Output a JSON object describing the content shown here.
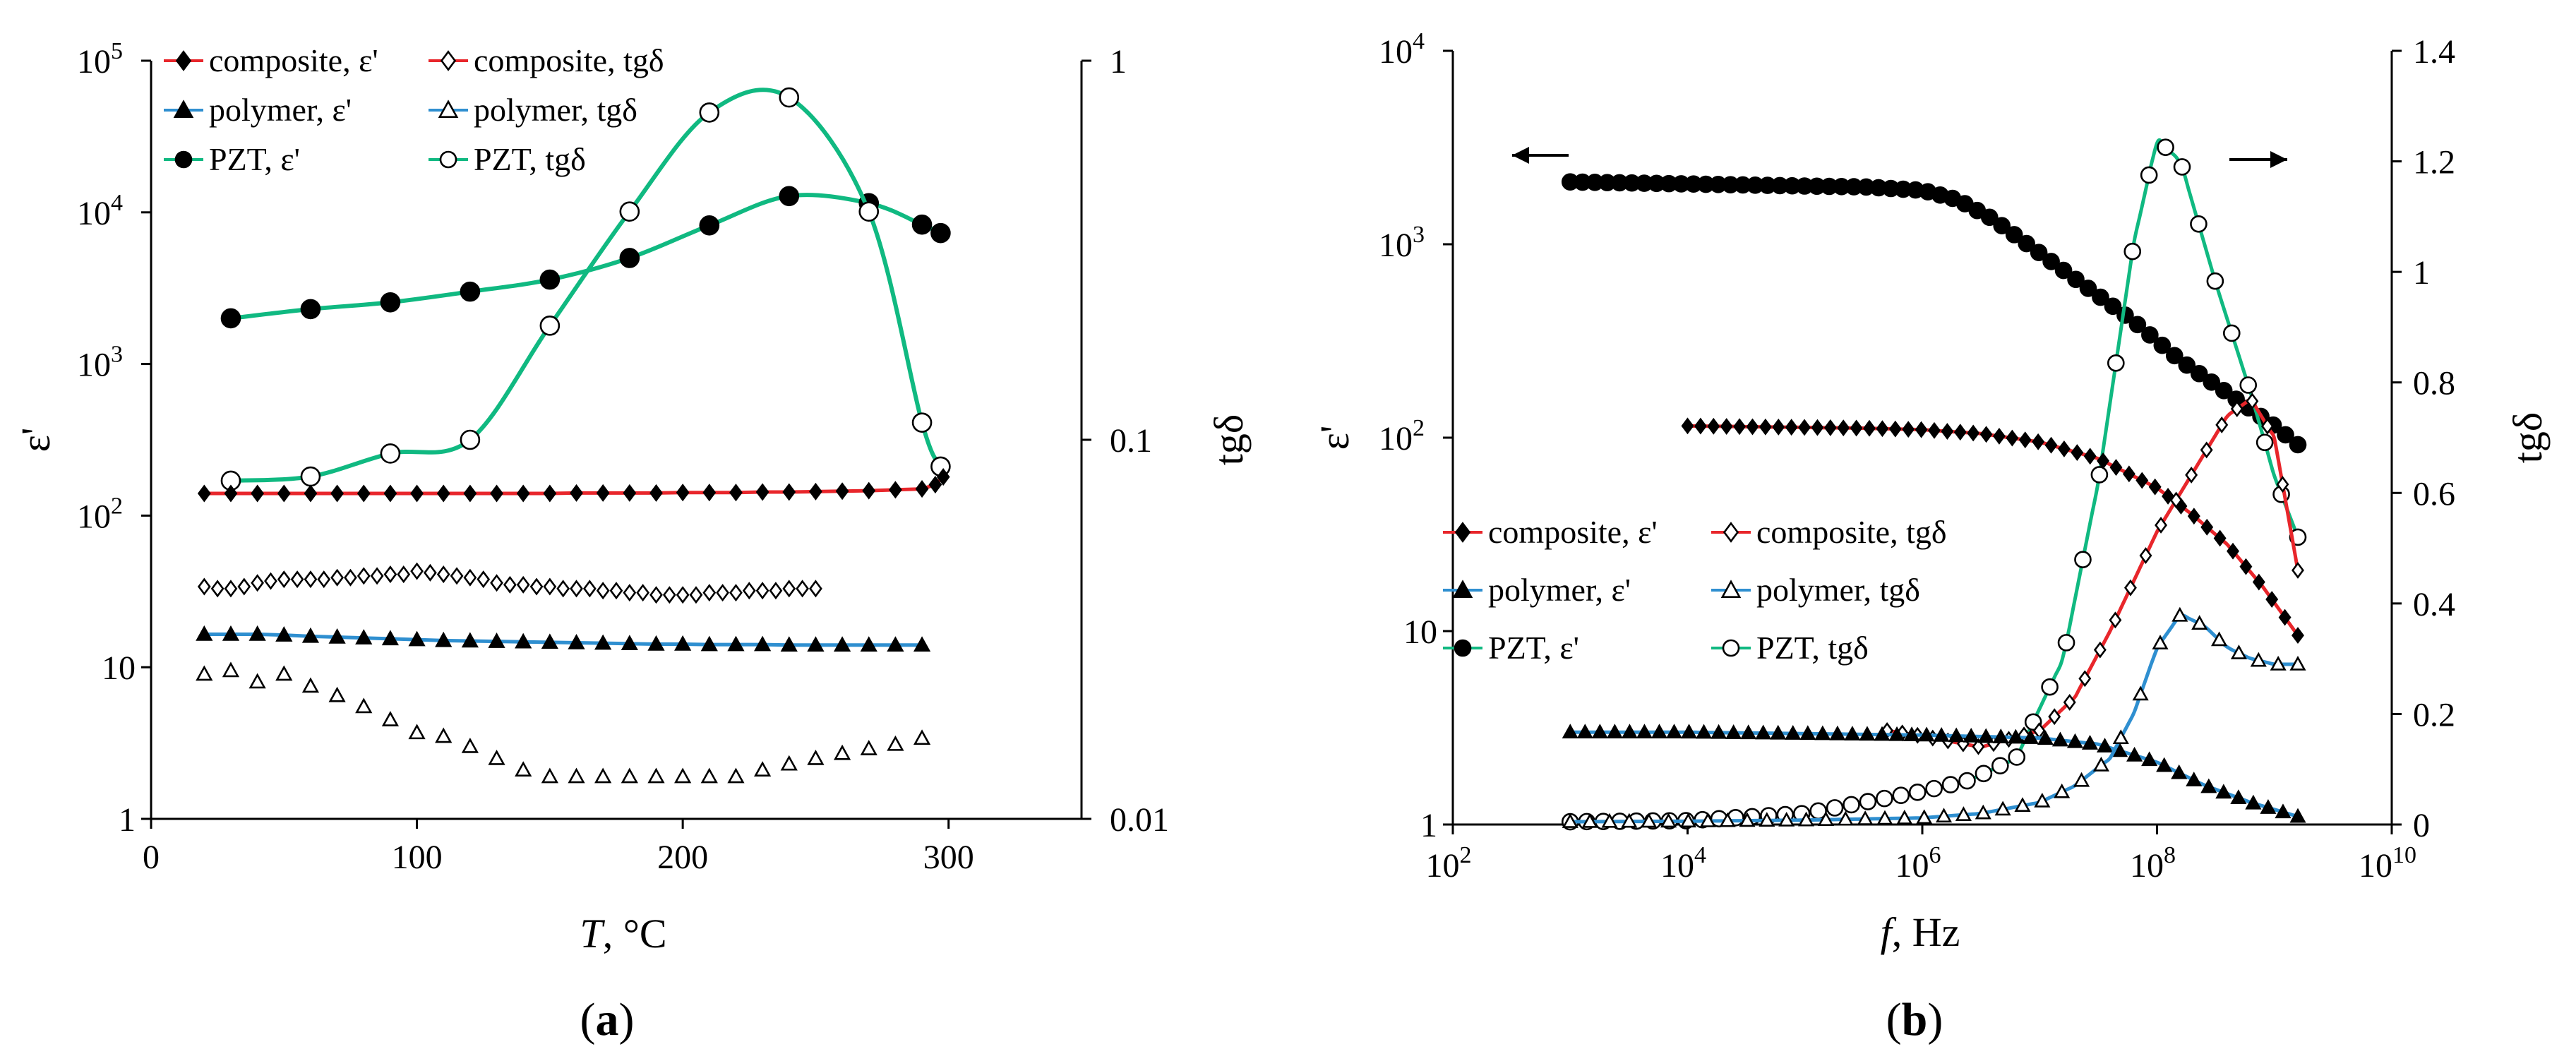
{
  "colors": {
    "composite": "#e8262b",
    "polymer": "#2f8fd0",
    "pzt": "#10b981",
    "marker": "#000000"
  },
  "legend_items": [
    {
      "label": "composite, ε'",
      "series": "composite",
      "marker": "diamond-filled"
    },
    {
      "label": "composite, tgδ",
      "series": "composite",
      "marker": "diamond-open"
    },
    {
      "label": "polymer, ε'",
      "series": "polymer",
      "marker": "triangle-filled"
    },
    {
      "label": "polymer, tgδ",
      "series": "polymer",
      "marker": "triangle-open"
    },
    {
      "label": "PZT, ε'",
      "series": "pzt",
      "marker": "circle-filled"
    },
    {
      "label": "PZT, tgδ",
      "series": "pzt",
      "marker": "circle-open"
    }
  ],
  "chart_data": [
    {
      "type": "line",
      "panel_label": "(a)",
      "panel_letter": "a",
      "xlabel_var": "T",
      "xlabel_unit": ", °C",
      "xlim": [
        0,
        350
      ],
      "x_ticks": [
        "0",
        "100",
        "200",
        "300"
      ],
      "x_tick_values": [
        0,
        100,
        200,
        300
      ],
      "ylabel": "ε'",
      "y_scale": "log",
      "ylim": [
        1,
        100000
      ],
      "y_ticks": [
        {
          "value": 1,
          "label": "1"
        },
        {
          "value": 10,
          "label": "10"
        },
        {
          "value": 100,
          "mant": "10",
          "exp": "2"
        },
        {
          "value": 1000,
          "mant": "10",
          "exp": "3"
        },
        {
          "value": 10000,
          "mant": "10",
          "exp": "4"
        },
        {
          "value": 100000,
          "mant": "10",
          "exp": "5"
        }
      ],
      "y2label": "tgδ",
      "y2_scale": "log",
      "y2lim": [
        0.01,
        1
      ],
      "y2_ticks": [
        {
          "value": 0.01,
          "label": "0.01"
        },
        {
          "value": 0.1,
          "label": "0.1"
        },
        {
          "value": 1,
          "label": "1"
        }
      ],
      "legend_position": "top-left",
      "series": [
        {
          "name": "PZT, ε'",
          "color_key": "pzt",
          "marker": "circle-filled",
          "axis": "left",
          "curve": "smooth",
          "x": [
            30,
            60,
            90,
            120,
            150,
            180,
            210,
            240,
            270,
            290,
            297
          ],
          "y": [
            2000,
            2300,
            2550,
            3000,
            3600,
            5000,
            8200,
            12800,
            11500,
            8300,
            7300
          ]
        },
        {
          "name": "PZT, tgδ",
          "color_key": "pzt",
          "marker": "circle-open",
          "axis": "right",
          "curve": "smooth",
          "x": [
            30,
            60,
            90,
            120,
            150,
            180,
            210,
            240,
            270,
            290,
            297
          ],
          "y": [
            0.078,
            0.08,
            0.092,
            0.1,
            0.2,
            0.4,
            0.73,
            0.8,
            0.4,
            0.111,
            0.085
          ]
        },
        {
          "name": "composite, ε'",
          "color_key": "composite",
          "marker": "diamond-filled",
          "axis": "left",
          "curve": "linear",
          "x": [
            20,
            30,
            40,
            50,
            60,
            70,
            80,
            90,
            100,
            110,
            120,
            130,
            140,
            150,
            160,
            170,
            180,
            190,
            200,
            210,
            220,
            230,
            240,
            250,
            260,
            270,
            280,
            290,
            295,
            298
          ],
          "y": [
            140,
            140,
            140,
            140,
            140,
            140,
            140,
            140,
            140,
            140,
            140,
            140,
            140,
            140,
            141,
            141,
            141,
            141,
            142,
            142,
            142,
            143,
            143,
            144,
            145,
            146,
            148,
            150,
            160,
            180
          ]
        },
        {
          "name": "composite, tgδ",
          "color_key": "composite",
          "marker": "diamond-open",
          "axis": "left",
          "curve": "none",
          "x": [
            20,
            25,
            30,
            35,
            40,
            45,
            50,
            55,
            60,
            65,
            70,
            75,
            80,
            85,
            90,
            95,
            100,
            105,
            110,
            115,
            120,
            125,
            130,
            135,
            140,
            145,
            150,
            155,
            160,
            165,
            170,
            175,
            180,
            185,
            190,
            195,
            200,
            205,
            210,
            215,
            220,
            225,
            230,
            235,
            240,
            245,
            250
          ],
          "y": [
            34,
            33,
            33,
            34,
            36,
            37,
            38,
            38,
            38,
            38,
            39,
            39,
            40,
            40,
            41,
            41,
            43,
            42,
            41,
            40,
            39,
            38,
            36,
            35,
            35,
            34,
            34,
            33,
            33,
            33,
            32,
            32,
            31,
            31,
            30,
            30,
            30,
            30,
            31,
            31,
            31,
            32,
            32,
            32,
            33,
            33,
            33
          ]
        },
        {
          "name": "polymer, ε'",
          "color_key": "polymer",
          "marker": "triangle-filled",
          "axis": "left",
          "curve": "linear",
          "x": [
            20,
            30,
            40,
            50,
            60,
            70,
            80,
            90,
            100,
            110,
            120,
            130,
            140,
            150,
            160,
            170,
            180,
            190,
            200,
            210,
            220,
            230,
            240,
            250,
            260,
            270,
            280,
            290
          ],
          "y": [
            16.5,
            16.5,
            16.5,
            16.3,
            16,
            15.8,
            15.6,
            15.4,
            15.2,
            15,
            14.9,
            14.8,
            14.7,
            14.6,
            14.5,
            14.4,
            14.3,
            14.2,
            14.2,
            14.1,
            14.1,
            14.1,
            14,
            14,
            14,
            14,
            14,
            14
          ]
        },
        {
          "name": "polymer, tgδ",
          "color_key": "polymer",
          "marker": "triangle-open",
          "axis": "left",
          "curve": "none",
          "x": [
            20,
            30,
            40,
            50,
            60,
            70,
            80,
            90,
            100,
            110,
            120,
            130,
            140,
            150,
            160,
            170,
            180,
            190,
            200,
            210,
            220,
            230,
            240,
            250,
            260,
            270,
            280,
            290
          ],
          "y": [
            9,
            9.5,
            8,
            9,
            7.5,
            6.5,
            5.5,
            4.5,
            3.7,
            3.5,
            3,
            2.5,
            2.1,
            1.9,
            1.9,
            1.9,
            1.9,
            1.9,
            1.9,
            1.9,
            1.9,
            2.1,
            2.3,
            2.5,
            2.7,
            2.9,
            3.1,
            3.4
          ]
        }
      ]
    },
    {
      "type": "line",
      "panel_label": "(b)",
      "panel_letter": "b",
      "xlabel_var": "f",
      "xlabel_unit": ", Hz",
      "x_scale": "log",
      "xlim": [
        100,
        10000000000
      ],
      "x_ticks": [
        {
          "value": 100,
          "mant": "10",
          "exp": "2"
        },
        {
          "value": 10000,
          "mant": "10",
          "exp": "4"
        },
        {
          "value": 1000000,
          "mant": "10",
          "exp": "6"
        },
        {
          "value": 100000000,
          "mant": "10",
          "exp": "8"
        },
        {
          "value": 10000000000,
          "mant": "10",
          "exp": "10"
        }
      ],
      "ylabel": "ε'",
      "y_scale": "log",
      "ylim": [
        1,
        10000
      ],
      "y_ticks": [
        {
          "value": 1,
          "label": "1"
        },
        {
          "value": 10,
          "label": "10"
        },
        {
          "value": 100,
          "mant": "10",
          "exp": "2"
        },
        {
          "value": 1000,
          "mant": "10",
          "exp": "3"
        },
        {
          "value": 10000,
          "mant": "10",
          "exp": "4"
        }
      ],
      "y2label": "tgδ",
      "y2_scale": "linear",
      "y2lim": [
        0,
        1.4
      ],
      "y2_ticks": [
        "0",
        "0.2",
        "0.4",
        "0.6",
        "0.8",
        "1",
        "1.2",
        "1.4"
      ],
      "y2_tick_values": [
        0,
        0.2,
        0.4,
        0.6,
        0.8,
        1,
        1.2,
        1.4
      ],
      "legend_position": "middle-left",
      "annotations": [
        "left arrow pointing to ε' axis",
        "right arrow pointing to tgδ axis"
      ],
      "series": [
        {
          "name": "PZT, ε'",
          "color_key": "pzt",
          "marker": "circle-filled",
          "axis": "left",
          "curve": "smooth",
          "x_log_range": [
            3,
            9.2
          ],
          "points": 60,
          "x_log": [
            3,
            4,
            5,
            5.5,
            6,
            6.3,
            6.6,
            7,
            7.4,
            7.8,
            8.2,
            8.6,
            9,
            9.2
          ],
          "y": [
            2100,
            2050,
            2000,
            1980,
            1900,
            1700,
            1350,
            900,
            600,
            400,
            250,
            170,
            115,
            92
          ]
        },
        {
          "name": "PZT, tgδ",
          "color_key": "pzt",
          "marker": "circle-open",
          "axis": "right",
          "curve": "smooth",
          "x_log_range": [
            3,
            9.2
          ],
          "points": 45,
          "x_log": [
            3,
            4,
            5,
            5.5,
            6,
            6.4,
            6.8,
            7.2,
            7.5,
            7.8,
            8,
            8.2,
            8.5,
            8.8,
            9,
            9.2
          ],
          "y": [
            0.005,
            0.007,
            0.02,
            0.04,
            0.06,
            0.08,
            0.12,
            0.3,
            0.62,
            1.05,
            1.24,
            1.2,
            0.98,
            0.78,
            0.63,
            0.52
          ]
        },
        {
          "name": "composite, ε'",
          "color_key": "composite",
          "marker": "diamond-filled",
          "axis": "left",
          "curve": "smooth",
          "x_log_range": [
            4,
            9.2
          ],
          "points": 48,
          "x_log": [
            4,
            5,
            5.5,
            6,
            6.5,
            7,
            7.5,
            8,
            8.3,
            8.6,
            8.9,
            9.2
          ],
          "y": [
            115,
            113,
            112,
            110,
            105,
            95,
            78,
            55,
            40,
            28,
            17,
            9.5
          ]
        },
        {
          "name": "composite, tgδ",
          "color_key": "composite",
          "marker": "diamond-open",
          "axis": "right",
          "curve": "smooth",
          "x_log_range": [
            5.7,
            9.2
          ],
          "points": 28,
          "x_log": [
            5.7,
            6,
            6.5,
            7,
            7.3,
            7.6,
            7.8,
            8,
            8.2,
            8.4,
            8.6,
            8.8,
            9,
            9.2
          ],
          "y": [
            0.17,
            0.16,
            0.14,
            0.17,
            0.23,
            0.35,
            0.44,
            0.53,
            0.6,
            0.67,
            0.74,
            0.77,
            0.7,
            0.46
          ]
        },
        {
          "name": "polymer, ε'",
          "color_key": "polymer",
          "marker": "triangle-filled",
          "axis": "left",
          "curve": "smooth",
          "x_log_range": [
            3,
            9.2
          ],
          "points": 50,
          "x_log": [
            3,
            4,
            5,
            6,
            6.5,
            7,
            7.5,
            8,
            8.4,
            8.8,
            9.2
          ],
          "y": [
            3,
            3,
            2.95,
            2.9,
            2.85,
            2.8,
            2.6,
            2.1,
            1.6,
            1.3,
            1.1
          ]
        },
        {
          "name": "polymer, tgδ",
          "color_key": "polymer",
          "marker": "triangle-open",
          "axis": "right",
          "curve": "smooth",
          "x_log_range": [
            3,
            9.2
          ],
          "points": 38,
          "x_log": [
            3,
            4,
            5,
            6,
            6.5,
            7,
            7.3,
            7.6,
            7.8,
            8,
            8.2,
            8.4,
            8.6,
            8.8,
            9,
            9.2
          ],
          "y": [
            0.005,
            0.006,
            0.008,
            0.012,
            0.02,
            0.04,
            0.07,
            0.12,
            0.2,
            0.32,
            0.38,
            0.36,
            0.32,
            0.3,
            0.29,
            0.29
          ]
        }
      ]
    }
  ]
}
